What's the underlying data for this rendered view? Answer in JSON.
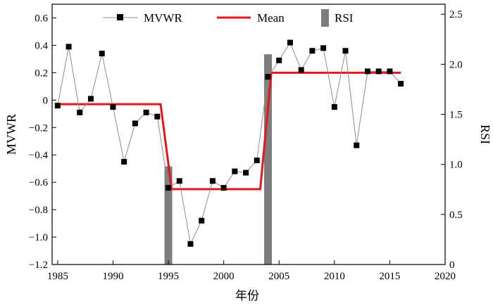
{
  "chart_data": {
    "type": "line",
    "xlabel": "年份",
    "ylabel": "MVWR",
    "y2label": "RSI",
    "xlim": [
      1984.5,
      2020
    ],
    "ylim": [
      -1.2,
      0.7
    ],
    "y2lim": [
      0,
      2.6
    ],
    "x_ticks": [
      1985,
      1990,
      1995,
      2000,
      2005,
      2010,
      2015,
      2020
    ],
    "x_tick_labels": [
      "1985",
      "1990",
      "1995",
      "2000",
      "2005",
      "2010",
      "2015",
      "2020"
    ],
    "y_ticks": [
      0.6,
      0.4,
      0.2,
      0,
      -0.2,
      -0.4,
      -0.6,
      -0.8,
      -1.0,
      -1.2
    ],
    "y_tick_labels": [
      "0.6",
      "0.4",
      "0.2",
      "0",
      "−0.2",
      "−0.4",
      "−0.6",
      "−0.8",
      "−1.0",
      "−1.2"
    ],
    "y2_ticks": [
      0,
      0.5,
      1.0,
      1.5,
      2.0,
      2.5
    ],
    "y2_tick_labels": [
      "0",
      "0.5",
      "1.0",
      "1.5",
      "2.0",
      "2.5"
    ],
    "legend_placement": "top",
    "grid": false,
    "series": [
      {
        "name": "MVWR",
        "type": "line-marker",
        "color": "#8c8c8c",
        "marker_color": "#000000",
        "x": [
          1985,
          1986,
          1987,
          1988,
          1989,
          1990,
          1991,
          1992,
          1993,
          1994,
          1995,
          1996,
          1997,
          1998,
          1999,
          2000,
          2001,
          2002,
          2003,
          2004,
          2005,
          2006,
          2007,
          2008,
          2009,
          2010,
          2011,
          2012,
          2013,
          2014,
          2015,
          2016
        ],
        "y": [
          -0.04,
          0.39,
          -0.09,
          0.01,
          0.34,
          -0.05,
          -0.45,
          -0.17,
          -0.09,
          -0.12,
          -0.64,
          -0.59,
          -1.05,
          -0.88,
          -0.59,
          -0.64,
          -0.52,
          -0.53,
          -0.44,
          0.17,
          0.29,
          0.42,
          0.22,
          0.36,
          0.38,
          -0.05,
          0.36,
          -0.33,
          0.21,
          0.21,
          0.21,
          0.12
        ]
      },
      {
        "name": "Mean",
        "type": "line",
        "color": "#e8161b",
        "x": [
          1985,
          1994.3,
          1995.3,
          2003.3,
          2004.3,
          2016
        ],
        "y": [
          -0.03,
          -0.03,
          -0.65,
          -0.65,
          0.2,
          0.2
        ]
      },
      {
        "name": "RSI",
        "type": "bar",
        "axis": "y2",
        "color": "#7d7d7d",
        "x": [
          1995,
          2004
        ],
        "y": [
          0.98,
          2.1
        ]
      }
    ]
  }
}
